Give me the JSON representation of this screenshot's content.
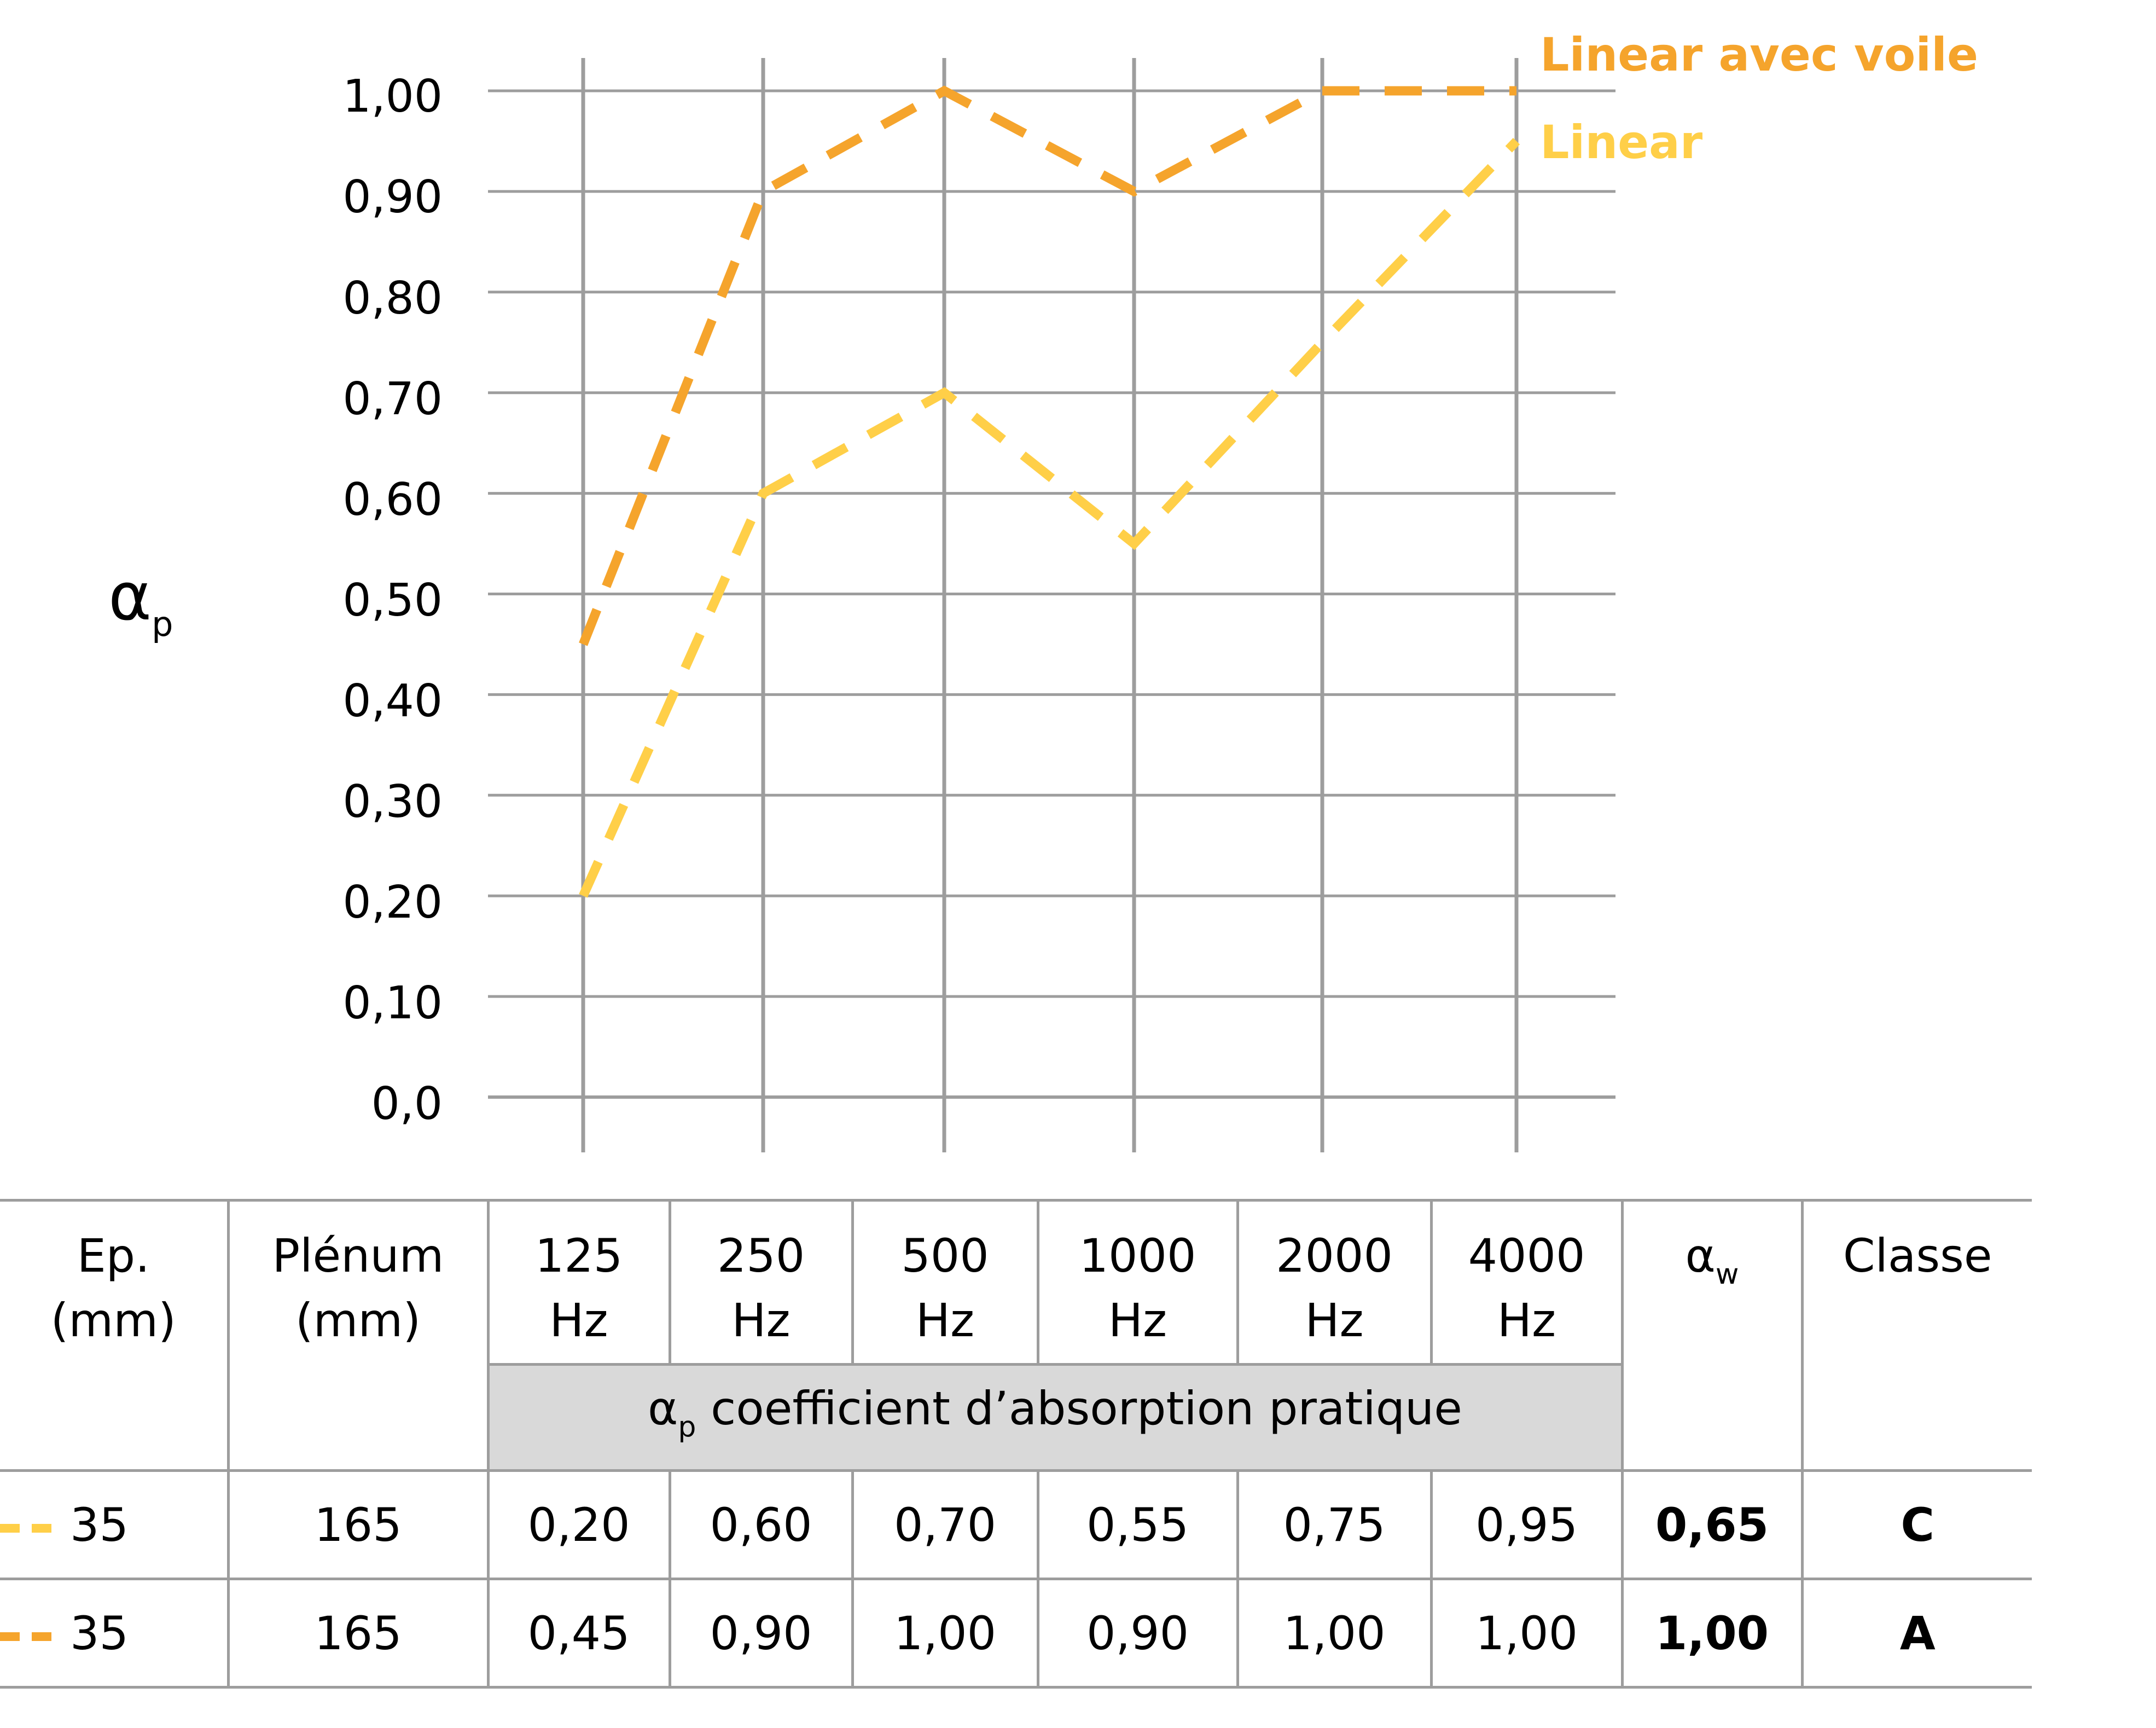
{
  "chart_data": {
    "type": "line",
    "title": "",
    "xlabel": "",
    "ylabel": "αp",
    "ylim": [
      0,
      1.0
    ],
    "yticks": [
      "0,0",
      "0,10",
      "0,20",
      "0,30",
      "0,40",
      "0,50",
      "0,60",
      "0,70",
      "0,80",
      "0,90",
      "1,00"
    ],
    "categories": [
      "125 Hz",
      "250 Hz",
      "500 Hz",
      "1000 Hz",
      "2000 Hz",
      "4000 Hz"
    ],
    "grid": true,
    "legend_position": "top-right",
    "series": [
      {
        "name": "Linear avec voile",
        "color": "#F5A42C",
        "style": "dashed",
        "values": [
          0.45,
          0.9,
          1.0,
          0.9,
          1.0,
          1.0
        ]
      },
      {
        "name": "Linear",
        "color": "#FFCF48",
        "style": "dashed",
        "values": [
          0.2,
          0.6,
          0.7,
          0.55,
          0.75,
          0.95
        ]
      }
    ]
  },
  "axis": {
    "ylabel_main": "α",
    "ylabel_sub": "p",
    "ticks": [
      "1,00",
      "0,90",
      "0,80",
      "0,70",
      "0,60",
      "0,50",
      "0,40",
      "0,30",
      "0,20",
      "0,10",
      "0,0"
    ]
  },
  "legend": {
    "series1": "Linear avec voile",
    "series2": "Linear"
  },
  "table": {
    "headers": {
      "ep_line1": "Ep.",
      "ep_line2": "(mm)",
      "plenum_line1": "Plénum",
      "plenum_line2": "(mm)",
      "freqs": [
        {
          "value": "125",
          "unit": "Hz"
        },
        {
          "value": "250",
          "unit": "Hz"
        },
        {
          "value": "500",
          "unit": "Hz"
        },
        {
          "value": "1000",
          "unit": "Hz"
        },
        {
          "value": "2000",
          "unit": "Hz"
        },
        {
          "value": "4000",
          "unit": "Hz"
        }
      ],
      "aw_main": "α",
      "aw_sub": "w",
      "classe": "Classe",
      "band_main": "α",
      "band_sub": "p",
      "band_text": " coefficient d’absorption pratique"
    },
    "rows": [
      {
        "ep": "35",
        "plenum": "165",
        "values": [
          "0,20",
          "0,60",
          "0,70",
          "0,55",
          "0,75",
          "0,95"
        ],
        "aw": "0,65",
        "classe": "C",
        "color": "#FFCF48"
      },
      {
        "ep": "35",
        "plenum": "165",
        "values": [
          "0,45",
          "0,90",
          "1,00",
          "0,90",
          "1,00",
          "1,00"
        ],
        "aw": "1,00",
        "classe": "A",
        "color": "#F5A42C"
      }
    ]
  },
  "colors": {
    "grid": "#9D9D9D",
    "band": "#D9D9D9",
    "series1": "#F5A42C",
    "series2": "#FFCF48"
  }
}
